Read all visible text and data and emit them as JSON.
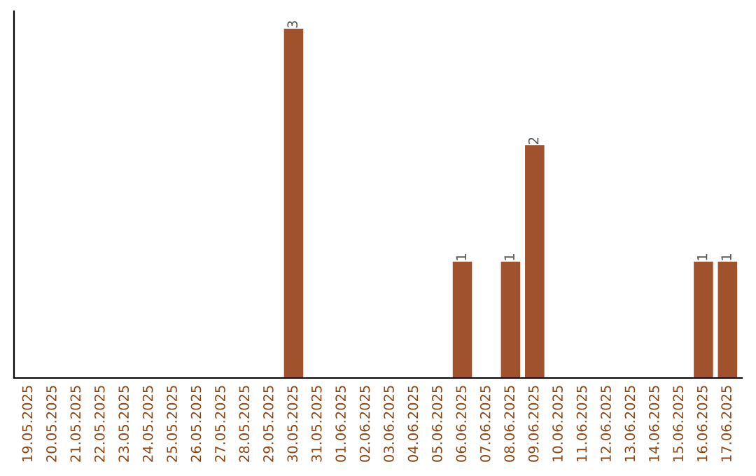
{
  "chart_data": {
    "type": "bar",
    "categories": [
      "19.05.2025",
      "20.05.2025",
      "21.05.2025",
      "22.05.2025",
      "23.05.2025",
      "24.05.2025",
      "25.05.2025",
      "26.05.2025",
      "27.05.2025",
      "28.05.2025",
      "29.05.2025",
      "30.05.2025",
      "31.05.2025",
      "01.06.2025",
      "02.06.2025",
      "03.06.2025",
      "04.06.2025",
      "05.06.2025",
      "06.06.2025",
      "07.06.2025",
      "08.06.2025",
      "09.06.2025",
      "10.06.2025",
      "11.06.2025",
      "12.06.2025",
      "13.06.2025",
      "14.06.2025",
      "15.06.2025",
      "16.06.2025",
      "17.06.2025"
    ],
    "series": [
      {
        "color": "#a0522d",
        "values": [
          0,
          0,
          0,
          0,
          0,
          0,
          0,
          0,
          0,
          0,
          0,
          3,
          0,
          0,
          0,
          0,
          0,
          0,
          1,
          0,
          1,
          2,
          0,
          0,
          0,
          0,
          0,
          0,
          1,
          1
        ],
        "value_labels": [
          null,
          null,
          null,
          null,
          null,
          null,
          null,
          null,
          null,
          null,
          null,
          "3",
          null,
          null,
          null,
          null,
          null,
          null,
          "1",
          null,
          "1",
          "2",
          null,
          null,
          null,
          null,
          null,
          null,
          "1",
          "1"
        ]
      }
    ],
    "tick_labels": "x",
    "grid": false,
    "legend": false
  }
}
